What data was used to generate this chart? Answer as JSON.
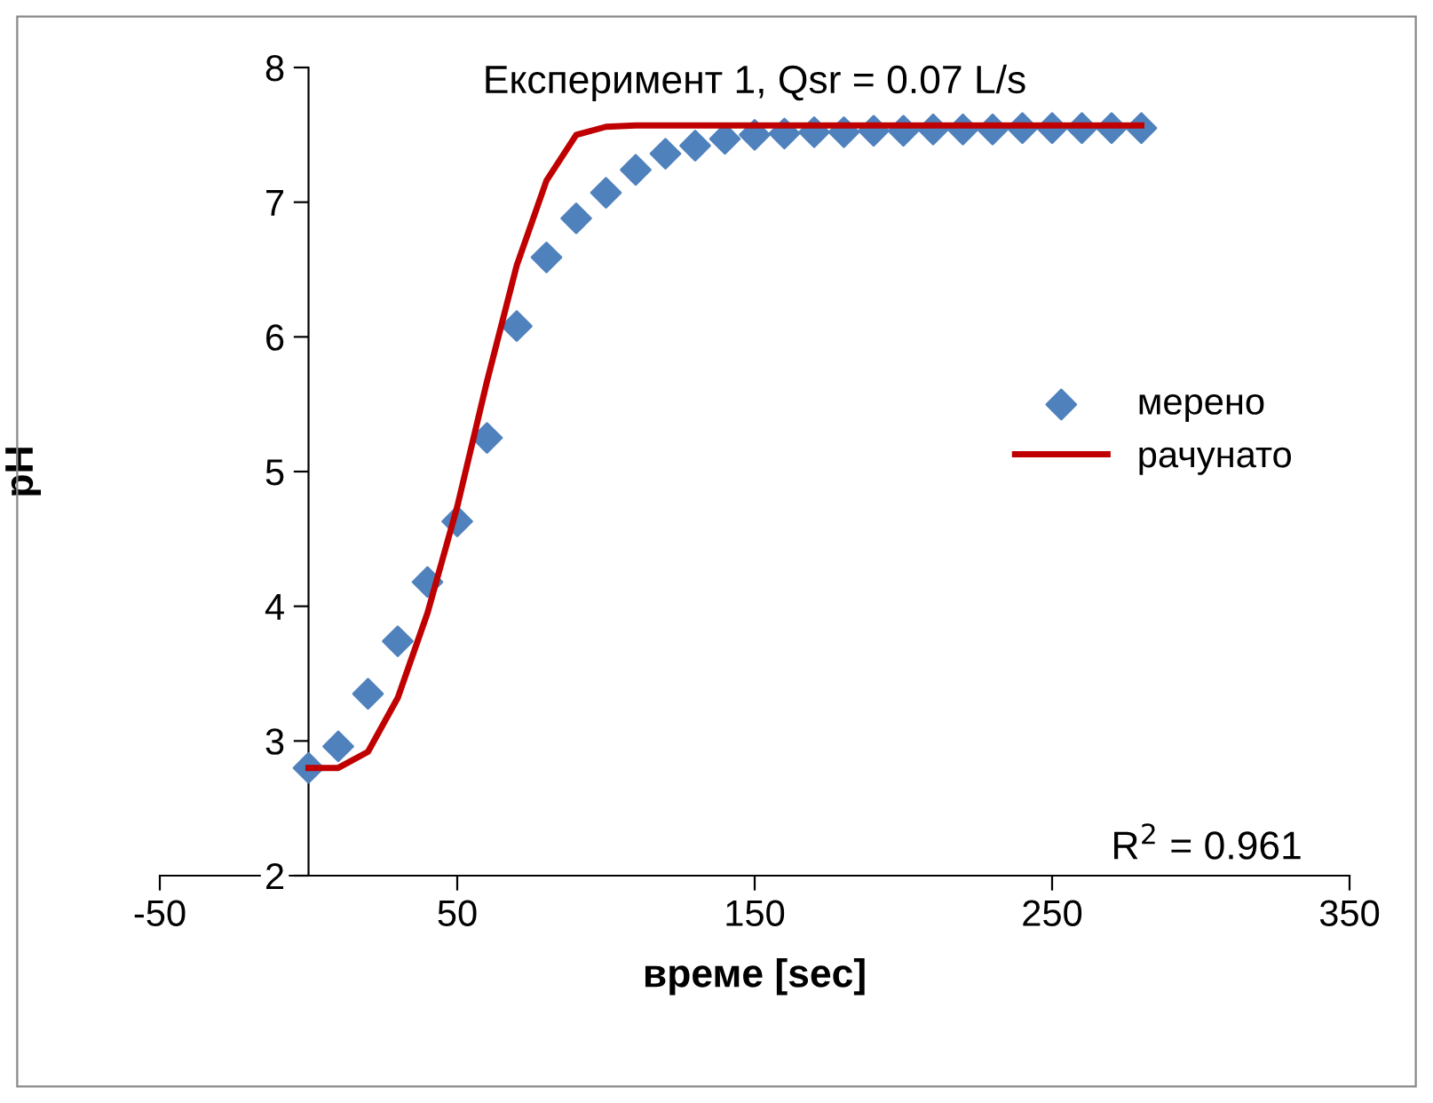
{
  "chart_data": {
    "type": "scatter",
    "title": "Експеримент 1, Qsr = 0.07 L/s",
    "xlabel": "време [sec]",
    "ylabel": "pH",
    "annotations": [
      "R$^{2}$ = 0.961"
    ],
    "series": [
      {
        "name": "мерено",
        "color": "#4f81bd",
        "marker": "diamond",
        "x": [
          0,
          10,
          20,
          30,
          40,
          50,
          60,
          70,
          80,
          90,
          100,
          110,
          120,
          130,
          140,
          150,
          160,
          170,
          180,
          190,
          200,
          210,
          220,
          230,
          240,
          250,
          260,
          270,
          280
        ],
        "values": [
          2.8,
          2.96,
          3.35,
          3.74,
          4.18,
          4.63,
          5.25,
          6.08,
          6.59,
          6.88,
          7.07,
          7.24,
          7.36,
          7.42,
          7.47,
          7.5,
          7.51,
          7.52,
          7.52,
          7.53,
          7.53,
          7.54,
          7.54,
          7.54,
          7.55,
          7.55,
          7.55,
          7.55,
          7.55
        ]
      },
      {
        "name": "рачунато",
        "type": "line",
        "color": "#c00000",
        "marker": "none",
        "x": [
          0,
          10,
          20,
          30,
          40,
          50,
          60,
          70,
          80,
          90,
          100,
          110,
          120,
          140,
          160,
          180,
          200,
          220,
          240,
          260,
          280
        ],
        "values": [
          2.8,
          2.8,
          2.92,
          3.32,
          3.95,
          4.74,
          5.67,
          6.53,
          7.16,
          7.5,
          7.56,
          7.57,
          7.57,
          7.57,
          7.57,
          7.57,
          7.57,
          7.57,
          7.57,
          7.57,
          7.57
        ]
      }
    ],
    "xlim": [
      -50,
      350
    ],
    "xticks": [
      -50,
      50,
      150,
      250,
      350
    ],
    "ylim": [
      2,
      8
    ],
    "yticks": [
      2,
      3,
      4,
      5,
      6,
      7,
      8
    ],
    "grid": false,
    "legend": "right"
  }
}
